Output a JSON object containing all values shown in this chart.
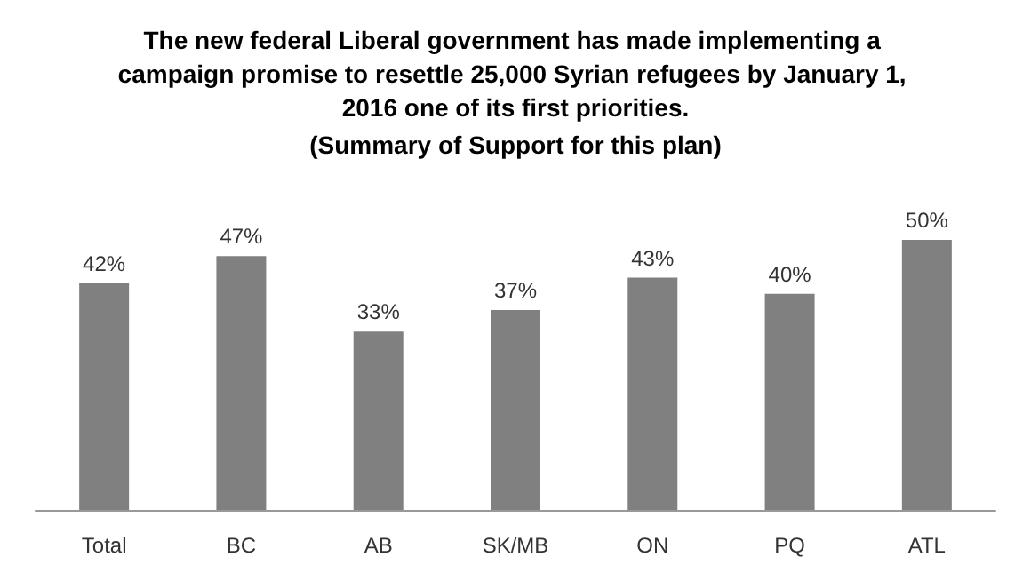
{
  "chart_data": {
    "type": "bar",
    "title": "The new federal Liberal government has made implementing a campaign promise to resettle 25,000 Syrian refugees by January 1, 2016 one of its first priorities.",
    "subtitle": "(Summary of Support for this plan)",
    "categories": [
      "Total",
      "BC",
      "AB",
      "SK/MB",
      "ON",
      "PQ",
      "ATL"
    ],
    "values": [
      42,
      47,
      33,
      37,
      43,
      40,
      50
    ],
    "value_labels": [
      "42%",
      "47%",
      "33%",
      "37%",
      "43%",
      "40%",
      "50%"
    ],
    "color": "#808080"
  }
}
